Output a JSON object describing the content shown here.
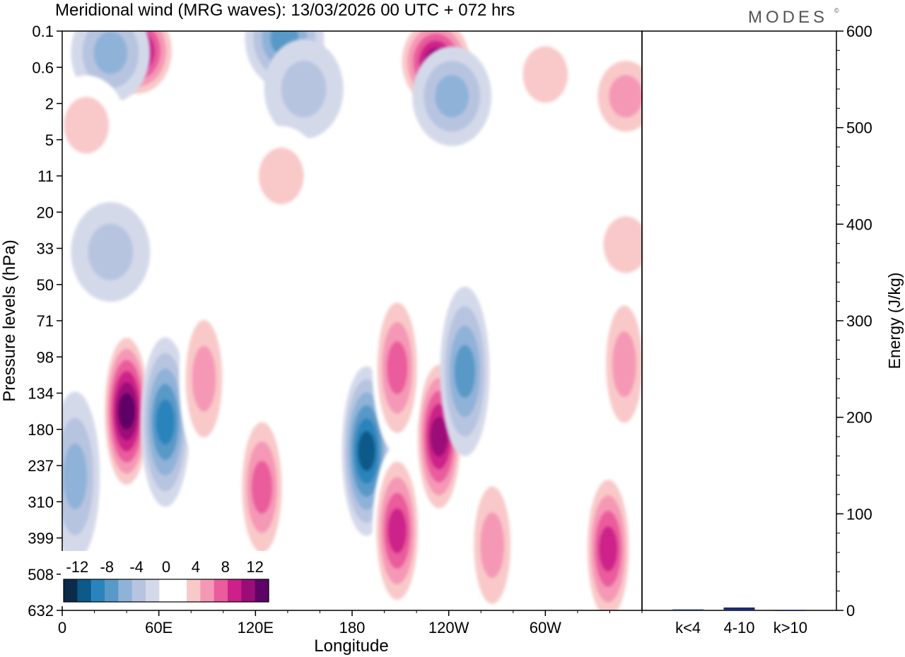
{
  "chart_data": [
    {
      "type": "heatmap",
      "title": "Meridional wind (MRG waves):  13/03/2026  00 UTC  + 072 hrs",
      "xlabel": "Longitude",
      "ylabel": "Pressure levels (hPa)",
      "x_ticks": [
        "0",
        "60E",
        "120E",
        "180",
        "120W",
        "60W"
      ],
      "x_range_deg": [
        0,
        360
      ],
      "y_ticks": [
        "0.1",
        "0.6",
        "2",
        "5",
        "11",
        "20",
        "33",
        "50",
        "71",
        "98",
        "134",
        "180",
        "237",
        "310",
        "399",
        "508",
        "632"
      ],
      "colorbar": {
        "labels": [
          "-12",
          "-8",
          "-4",
          "0",
          "4",
          "8",
          "12"
        ],
        "levels": [
          -14,
          -12,
          -10,
          -8,
          -6,
          -4,
          -2,
          2,
          4,
          6,
          8,
          10,
          12,
          14
        ],
        "colors": [
          "#0c2a4a",
          "#0b5a8a",
          "#2a84bc",
          "#5899c7",
          "#8fb2d8",
          "#b7c4e0",
          "#d4d9ea",
          "#ffffff",
          "#ffffff",
          "#f9c9c9",
          "#f598b6",
          "#ea5c9c",
          "#cd2189",
          "#9c0c78",
          "#5e0466"
        ]
      },
      "features": [
        {
          "lon": 40,
          "lev": 10.5,
          "value": 13
        },
        {
          "lon": 64,
          "lev": 10.8,
          "value": -10
        },
        {
          "lon": 8,
          "lev": 12.3,
          "value": -6
        },
        {
          "lon": 88,
          "lev": 9.6,
          "value": 6
        },
        {
          "lon": 124,
          "lev": 12.6,
          "value": 8
        },
        {
          "lon": 189,
          "lev": 11.6,
          "value": -11
        },
        {
          "lon": 208,
          "lev": 13.8,
          "value": 10
        },
        {
          "lon": 234,
          "lev": 11.2,
          "value": 11
        },
        {
          "lon": 208,
          "lev": 9.3,
          "value": 8
        },
        {
          "lon": 250,
          "lev": 9.4,
          "value": -7
        },
        {
          "lon": 267,
          "lev": 14.2,
          "value": 5
        },
        {
          "lon": 339,
          "lev": 14.3,
          "value": 10
        },
        {
          "lon": 349,
          "lev": 9.2,
          "value": 5
        },
        {
          "lon": 47,
          "lev": 0.55,
          "value": 11
        },
        {
          "lon": 232,
          "lev": 0.85,
          "value": 12
        },
        {
          "lon": 138,
          "lev": 0.2,
          "value": -8
        },
        {
          "lon": 30,
          "lev": 0.6,
          "value": -6
        },
        {
          "lon": 150,
          "lev": 1.6,
          "value": -4
        },
        {
          "lon": 242,
          "lev": 1.8,
          "value": -5
        },
        {
          "lon": 300,
          "lev": 1.2,
          "value": 4
        },
        {
          "lon": 350,
          "lev": 1.8,
          "value": 5
        },
        {
          "lon": 30,
          "lev": 6.1,
          "value": -3
        },
        {
          "lon": 136,
          "lev": 4.0,
          "value": 3
        },
        {
          "lon": 15,
          "lev": 2.6,
          "value": 3
        },
        {
          "lon": 350,
          "lev": 5.9,
          "value": 3
        }
      ]
    },
    {
      "type": "bar",
      "categories": [
        "k<4",
        "4-10",
        "k>10"
      ],
      "values": [
        1,
        3,
        0
      ],
      "ylabel": "Energy (J/kg)",
      "ylim": [
        0,
        600
      ],
      "y_ticks": [
        "0",
        "100",
        "200",
        "300",
        "400",
        "500",
        "600"
      ]
    }
  ],
  "logo": {
    "text": "MODES",
    "mark": "©"
  }
}
